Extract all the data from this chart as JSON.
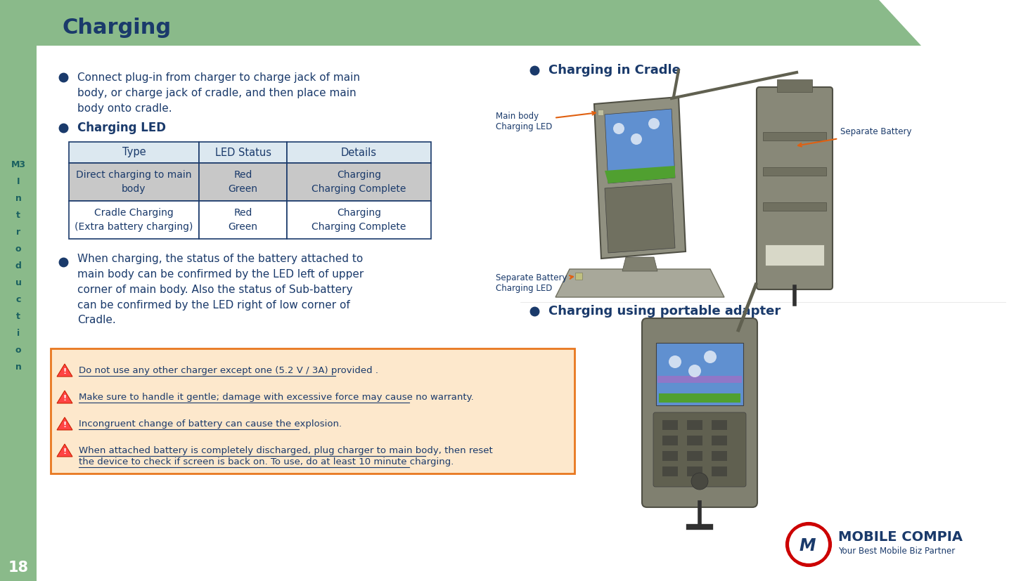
{
  "title": "Charging",
  "title_color": "#1a3a6b",
  "title_fontsize": 22,
  "bg_color": "#ffffff",
  "sidebar_color": "#8aba8a",
  "header_bg_color": "#8aba8a",
  "sidebar_text_color": "#1a6060",
  "page_number": "18",
  "page_number_color": "#ffffff",
  "bullet_color": "#1a3a6b",
  "body_text_color": "#1a3a6b",
  "bullet1_line1": "Connect plug-in from charger to charge jack of main",
  "bullet1_line2": "body, or charge jack of cradle, and then place main",
  "bullet1_line3": "body onto cradle.",
  "bullet2": "Charging LED",
  "bullet3_line1": "When charging, the status of the battery attached to",
  "bullet3_line2": "main body can be confirmed by the LED left of upper",
  "bullet3_line3": "corner of main body. Also the status of Sub-battery",
  "bullet3_line4": "can be confirmed by the LED right of low corner of",
  "bullet3_line5": "Cradle.",
  "table_header_bg": "#dce8f0",
  "table_row1_bg": "#c8c8c8",
  "table_row2_bg": "#ffffff",
  "table_border_color": "#1a3a6b",
  "table_headers": [
    "Type",
    "LED Status",
    "Details"
  ],
  "table_row1_col1": "Direct charging to main\nbody",
  "table_row1_col2": "Red\nGreen",
  "table_row1_col3": "Charging\nCharging Complete",
  "table_row2_col1": "Cradle Charging\n(Extra battery charging)",
  "table_row2_col2": "Red\nGreen",
  "table_row2_col3": "Charging\nCharging Complete",
  "right_bullet1": "Charging in Cradle",
  "right_bullet2": "Charging using portable adapter",
  "warning_bg": "#fde8cc",
  "warning_border": "#e87820",
  "warning_text_color": "#1a3a6b",
  "warning1": "Do not use any other charger except one (5.2 V / 3A) provided .",
  "warning2": "Make sure to handle it gentle; damage with excessive force may cause no warranty.",
  "warning3": "Incongruent change of battery can cause the explosion.",
  "warning4a": "When attached battery is completely discharged, plug charger to main body, then reset",
  "warning4b": "the device to check if screen is back on. To use, do at least 10 minute charging.",
  "cradle_label1": "Main body\nCharging LED",
  "cradle_label2": "Separate Battery",
  "cradle_label3": "Separate Battery\nCharging LED",
  "logo_text1": "MOBILE COMPIA",
  "logo_text2": "Your Best Mobile Biz Partner",
  "logo_color1": "#cc0000",
  "logo_color2": "#1a3a6b",
  "sidebar_chars": [
    "M3",
    "I",
    "n",
    "t",
    "r",
    "o",
    "d",
    "u",
    "c",
    "t",
    "i",
    "o",
    "n"
  ]
}
